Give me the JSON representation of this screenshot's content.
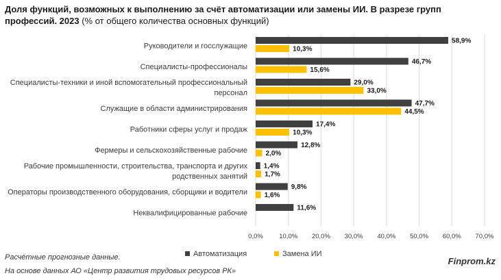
{
  "title": {
    "bold": "Доля функций, возможных к выполнению за счёт автоматизации или замены ИИ. В разрезе групп профессий. 2023",
    "normal": " (% от общего количества основных функций)"
  },
  "note": "Расчётные прогнозные данные.",
  "source": "На основе данных АО «Центр развития трудовых ресурсов РК»",
  "brand": "Finprom.kz",
  "colors": {
    "automation": "#404040",
    "ai": "#FFC000",
    "grid": "#d9d9d9"
  },
  "chart_data": {
    "type": "bar",
    "orientation": "horizontal",
    "categories": [
      [
        "Руководители и госслужащие"
      ],
      [
        "Специалисты-профессионалы"
      ],
      [
        "Специалисты-техники и иной вспомогательный профессиональный",
        "персонал"
      ],
      [
        "Служащие в области администрирования"
      ],
      [
        "Работники сферы услуг и продаж"
      ],
      [
        "Фермеры и сельскохозяйственные рабочие"
      ],
      [
        "Рабочие промышленности, строительства, транспорта и других",
        "родственных занятий"
      ],
      [
        "Операторы производственного оборудования, сборщики и водители"
      ],
      [
        "Неквалифицированные рабочие"
      ]
    ],
    "series": [
      {
        "name": "Автоматизация",
        "values": [
          58.9,
          46.7,
          29.0,
          47.7,
          17.4,
          12.8,
          1.4,
          9.8,
          11.6
        ],
        "labels": [
          "58,9%",
          "46,7%",
          "29,0%",
          "47,7%",
          "17,4%",
          "12,8%",
          "1,4%",
          "9,8%",
          "11,6%"
        ]
      },
      {
        "name": "Замена ИИ",
        "values": [
          10.3,
          15.6,
          33.0,
          44.5,
          10.3,
          2.0,
          1.7,
          1.6,
          null
        ],
        "labels": [
          "10,3%",
          "15,6%",
          "33,0%",
          "44,5%",
          "10,3%",
          "2,0%",
          "1,7%",
          "1,6%",
          null
        ]
      }
    ],
    "xlim": [
      0,
      70
    ],
    "xticks": [
      "0,0%",
      "10,0%",
      "20,0%",
      "30,0%",
      "40,0%",
      "50,0%",
      "60,0%",
      "70,0%"
    ],
    "grid": "vertical",
    "legend": "bottom"
  }
}
